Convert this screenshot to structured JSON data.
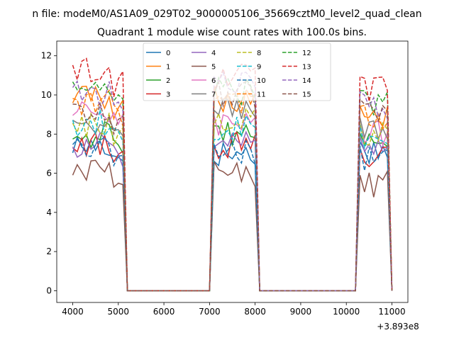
{
  "figure": {
    "suptitle": "n file: modeM0/AS1A09_029T02_9000005106_35669cztM0_level2_quad_clean",
    "title": "Quadrant 1 module wise count rates with 100.0s bins.",
    "offset_label": "+3.893e8"
  },
  "chart_data": {
    "type": "line",
    "title": "Quadrant 1 module wise count rates with 100.0s bins.",
    "xlabel": "",
    "ylabel": "",
    "x_offset": 389300000,
    "xlim": [
      3650,
      11350
    ],
    "ylim": [
      -0.6,
      12.75
    ],
    "xticks": [
      4000,
      5000,
      6000,
      7000,
      8000,
      9000,
      10000,
      11000
    ],
    "yticks": [
      0,
      2,
      4,
      6,
      8,
      10,
      12
    ],
    "xtick_labels": [
      "4000",
      "5000",
      "6000",
      "7000",
      "8000",
      "9000",
      "10000",
      "11000"
    ],
    "ytick_labels": [
      "0",
      "2",
      "4",
      "6",
      "8",
      "10",
      "12"
    ],
    "grid": false,
    "legend": {
      "placement": "upper center",
      "columns": 4
    },
    "segments": [
      {
        "start": 4000,
        "step": 100,
        "count": 12
      },
      {
        "start": 7100,
        "step": 100,
        "count": 10
      },
      {
        "start": 10300,
        "step": 100,
        "count": 7
      }
    ],
    "gap_x": [
      5200,
      5300,
      5400,
      5500,
      5600,
      5700,
      5800,
      5900,
      6000,
      6100,
      6200,
      6300,
      6400,
      6500,
      6600,
      6700,
      6800,
      6900,
      7000,
      8100,
      8200,
      8300,
      8400,
      8500,
      8600,
      8700,
      8800,
      8900,
      9000,
      9100,
      9200,
      9300,
      9400,
      9500,
      9600,
      9700,
      9800,
      9900,
      10000,
      10100,
      10200,
      11000
    ],
    "series": [
      {
        "name": "0",
        "color": "#1f77b4",
        "dashed": false,
        "levels": [
          7.4,
          7.0,
          7.2
        ]
      },
      {
        "name": "1",
        "color": "#ff7f0e",
        "dashed": false,
        "levels": [
          9.9,
          9.8,
          9.0
        ]
      },
      {
        "name": "2",
        "color": "#2ca02c",
        "dashed": false,
        "levels": [
          8.0,
          8.1,
          7.6
        ]
      },
      {
        "name": "3",
        "color": "#d62728",
        "dashed": false,
        "levels": [
          7.5,
          7.4,
          6.8
        ]
      },
      {
        "name": "4",
        "color": "#9467bd",
        "dashed": false,
        "levels": [
          7.5,
          7.7,
          7.4
        ]
      },
      {
        "name": "5",
        "color": "#8c564b",
        "dashed": false,
        "levels": [
          6.0,
          5.9,
          5.4
        ]
      },
      {
        "name": "6",
        "color": "#e377c2",
        "dashed": false,
        "levels": [
          9.0,
          8.6,
          8.0
        ]
      },
      {
        "name": "7",
        "color": "#7f7f7f",
        "dashed": false,
        "levels": [
          8.7,
          9.2,
          8.3
        ]
      },
      {
        "name": "8",
        "color": "#bcbd22",
        "dashed": true,
        "levels": [
          8.5,
          8.8,
          8.0
        ]
      },
      {
        "name": "9",
        "color": "#17becf",
        "dashed": true,
        "levels": [
          8.6,
          8.4,
          7.9
        ]
      },
      {
        "name": "10",
        "color": "#1f77b4",
        "dashed": true,
        "levels": [
          7.3,
          7.1,
          6.8
        ]
      },
      {
        "name": "11",
        "color": "#ff7f0e",
        "dashed": true,
        "levels": [
          9.6,
          9.7,
          8.8
        ]
      },
      {
        "name": "12",
        "color": "#2ca02c",
        "dashed": true,
        "levels": [
          10.4,
          10.2,
          9.6
        ]
      },
      {
        "name": "13",
        "color": "#d62728",
        "dashed": true,
        "levels": [
          11.2,
          10.9,
          10.3
        ]
      },
      {
        "name": "14",
        "color": "#9467bd",
        "dashed": true,
        "levels": [
          10.0,
          10.5,
          9.5
        ]
      },
      {
        "name": "15",
        "color": "#8c564b",
        "dashed": true,
        "levels": [
          9.1,
          10.0,
          9.1
        ]
      }
    ]
  }
}
